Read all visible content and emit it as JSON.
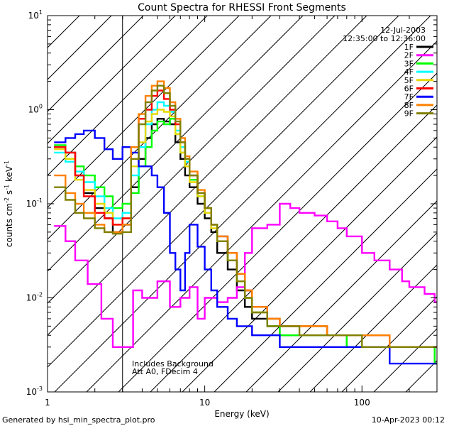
{
  "chart_data": {
    "type": "line",
    "title": "Count Spectra for RHESSI Front Segments",
    "xlabel": "Energy (keV)",
    "ylabel": "counts cm^-2 s^-1 keV^-1",
    "ylabel_parts": [
      "counts cm",
      "-2",
      " s",
      "-1",
      " keV",
      "-1"
    ],
    "xscale": "log",
    "yscale": "log",
    "xlim": [
      1,
      300
    ],
    "ylim": [
      0.001,
      10
    ],
    "x_tick_labels": [
      {
        "value": 1,
        "label": "1"
      },
      {
        "value": 10,
        "label": "10"
      },
      {
        "value": 100,
        "label": "100"
      }
    ],
    "y_tick_labels": [
      {
        "value": 10,
        "base": "10",
        "exp": "1"
      },
      {
        "value": 1,
        "base": "10",
        "exp": "0"
      },
      {
        "value": 0.1,
        "base": "10",
        "exp": "-1"
      },
      {
        "value": 0.01,
        "base": "10",
        "exp": "-2"
      },
      {
        "value": 0.001,
        "base": "10",
        "exp": "-3"
      }
    ],
    "hatched_region_energy": [
      1,
      3
    ],
    "date": "12-Jul-2003",
    "time_range": "12:35:00 to 12:36:00",
    "annotations": [
      "Includes Background",
      "Att A0, FDecim 4"
    ],
    "footer_left": "Generated by hsi_min_spectra_plot.pro",
    "footer_right": "10-Apr-2023 00:12",
    "legend_position": "top-right",
    "series": [
      {
        "name": "1F",
        "color": "#000000",
        "x": [
          1.1,
          1.3,
          1.5,
          1.7,
          2.0,
          2.3,
          2.6,
          3.0,
          3.4,
          3.8,
          4.2,
          4.6,
          5.0,
          5.5,
          6.0,
          6.5,
          7.0,
          7.5,
          8.0,
          9.0,
          10.0,
          11.0,
          12.0,
          14.0,
          16.0,
          18.0,
          20.0,
          25.0,
          30.0,
          40.0,
          60.0,
          80.0,
          100.0,
          150.0,
          200.0,
          250.0,
          290.0
        ],
        "y": [
          0.4,
          0.35,
          0.2,
          0.13,
          0.09,
          0.07,
          0.05,
          0.06,
          0.15,
          0.3,
          0.5,
          0.7,
          0.8,
          0.75,
          0.7,
          0.45,
          0.3,
          0.2,
          0.15,
          0.1,
          0.07,
          0.05,
          0.03,
          0.02,
          0.012,
          0.008,
          0.006,
          0.005,
          0.004,
          0.004,
          0.004,
          0.003,
          0.003,
          0.003,
          0.003,
          0.003,
          0.002
        ]
      },
      {
        "name": "2F",
        "color": "#ff00ff",
        "x": [
          1.1,
          1.3,
          1.5,
          1.8,
          2.2,
          2.6,
          3.0,
          3.5,
          4.0,
          5.0,
          6.0,
          7.0,
          8.0,
          9.0,
          10.0,
          12.0,
          14.0,
          16.0,
          18.0,
          20.0,
          25.0,
          30.0,
          35.0,
          40.0,
          50.0,
          60.0,
          70.0,
          80.0,
          100.0,
          120.0,
          150.0,
          180.0,
          200.0,
          250.0,
          290.0
        ],
        "y": [
          0.058,
          0.04,
          0.025,
          0.014,
          0.006,
          0.003,
          0.003,
          0.012,
          0.01,
          0.015,
          0.008,
          0.01,
          0.013,
          0.006,
          0.01,
          0.009,
          0.01,
          0.013,
          0.03,
          0.055,
          0.06,
          0.1,
          0.09,
          0.08,
          0.075,
          0.065,
          0.055,
          0.045,
          0.03,
          0.025,
          0.02,
          0.015,
          0.013,
          0.011,
          0.009
        ]
      },
      {
        "name": "3F",
        "color": "#00ff00",
        "x": [
          1.1,
          1.3,
          1.5,
          1.7,
          2.0,
          2.3,
          2.6,
          3.0,
          3.4,
          3.8,
          4.2,
          4.6,
          5.0,
          5.5,
          6.0,
          6.5,
          7.0,
          7.5,
          8.0,
          9.0,
          10.0,
          11.0,
          12.0,
          14.0,
          16.0,
          18.0,
          20.0,
          25.0,
          30.0,
          40.0,
          60.0,
          80.0,
          100.0,
          150.0,
          200.0,
          250.0,
          290.0
        ],
        "y": [
          0.42,
          0.3,
          0.25,
          0.2,
          0.15,
          0.12,
          0.09,
          0.1,
          0.13,
          0.25,
          0.4,
          0.6,
          0.75,
          0.7,
          0.8,
          0.55,
          0.35,
          0.25,
          0.18,
          0.12,
          0.09,
          0.06,
          0.04,
          0.025,
          0.015,
          0.01,
          0.007,
          0.005,
          0.004,
          0.004,
          0.004,
          0.003,
          0.003,
          0.003,
          0.003,
          0.003,
          0.002
        ]
      },
      {
        "name": "4F",
        "color": "#00ffff",
        "x": [
          1.1,
          1.3,
          1.5,
          1.7,
          2.0,
          2.3,
          2.6,
          3.0,
          3.4,
          3.8,
          4.2,
          4.6,
          5.0,
          5.5,
          6.0,
          6.5,
          7.0,
          7.5,
          8.0,
          9.0,
          10.0,
          11.0,
          12.0,
          14.0,
          16.0,
          18.0,
          20.0,
          25.0,
          30.0,
          40.0,
          60.0,
          80.0,
          100.0,
          150.0,
          200.0,
          250.0,
          290.0
        ],
        "y": [
          0.35,
          0.28,
          0.22,
          0.17,
          0.12,
          0.09,
          0.07,
          0.08,
          0.2,
          0.4,
          0.7,
          1.0,
          1.2,
          1.1,
          0.95,
          0.6,
          0.4,
          0.28,
          0.2,
          0.13,
          0.09,
          0.06,
          0.045,
          0.03,
          0.018,
          0.012,
          0.008,
          0.006,
          0.005,
          0.005,
          0.004,
          0.004,
          0.004,
          0.003,
          0.003,
          0.003,
          0.003
        ]
      },
      {
        "name": "5F",
        "color": "#e6d800",
        "x": [
          1.1,
          1.3,
          1.5,
          1.7,
          2.0,
          2.3,
          2.6,
          3.0,
          3.4,
          3.8,
          4.2,
          4.6,
          5.0,
          5.5,
          6.0,
          6.5,
          7.0,
          7.5,
          8.0,
          9.0,
          10.0,
          11.0,
          12.0,
          14.0,
          16.0,
          18.0,
          20.0,
          25.0,
          30.0,
          40.0,
          60.0,
          80.0,
          100.0,
          150.0,
          200.0,
          250.0,
          290.0
        ],
        "y": [
          0.38,
          0.3,
          0.18,
          0.14,
          0.1,
          0.08,
          0.06,
          0.07,
          0.25,
          0.45,
          0.75,
          0.9,
          1.0,
          0.95,
          0.85,
          0.55,
          0.35,
          0.25,
          0.17,
          0.12,
          0.08,
          0.055,
          0.04,
          0.025,
          0.015,
          0.01,
          0.007,
          0.006,
          0.005,
          0.005,
          0.004,
          0.004,
          0.004,
          0.003,
          0.003,
          0.003,
          0.003
        ]
      },
      {
        "name": "6F",
        "color": "#ff0000",
        "x": [
          1.1,
          1.3,
          1.5,
          1.7,
          2.0,
          2.3,
          2.6,
          3.0,
          3.4,
          3.8,
          4.2,
          4.6,
          5.0,
          5.5,
          6.0,
          6.5,
          7.0,
          7.5,
          8.0,
          9.0,
          10.0,
          11.0,
          12.0,
          14.0,
          16.0,
          18.0,
          20.0,
          25.0,
          30.0,
          40.0,
          60.0,
          80.0,
          100.0,
          150.0,
          200.0,
          250.0,
          290.0
        ],
        "y": [
          0.4,
          0.35,
          0.2,
          0.12,
          0.08,
          0.07,
          0.06,
          0.07,
          0.4,
          0.8,
          1.0,
          1.4,
          1.6,
          1.3,
          1.0,
          0.7,
          0.45,
          0.3,
          0.2,
          0.13,
          0.09,
          0.06,
          0.045,
          0.03,
          0.018,
          0.012,
          0.008,
          0.006,
          0.005,
          0.005,
          0.004,
          0.004,
          0.004,
          0.003,
          0.003,
          0.003,
          0.003
        ]
      },
      {
        "name": "7F",
        "color": "#0000ff",
        "x": [
          1.1,
          1.3,
          1.5,
          1.7,
          2.0,
          2.3,
          2.6,
          3.0,
          3.4,
          3.8,
          4.2,
          4.6,
          5.0,
          5.5,
          6.0,
          6.5,
          7.0,
          7.5,
          8.0,
          9.0,
          10.0,
          11.0,
          12.0,
          14.0,
          16.0,
          18.0,
          20.0,
          25.0,
          30.0,
          40.0,
          60.0,
          80.0,
          100.0,
          150.0,
          200.0,
          250.0,
          290.0
        ],
        "y": [
          0.45,
          0.5,
          0.55,
          0.6,
          0.5,
          0.38,
          0.3,
          0.4,
          0.35,
          0.25,
          0.25,
          0.2,
          0.15,
          0.08,
          0.03,
          0.02,
          0.012,
          0.03,
          0.06,
          0.035,
          0.02,
          0.012,
          0.008,
          0.006,
          0.005,
          0.005,
          0.004,
          0.004,
          0.003,
          0.003,
          0.003,
          0.003,
          0.003,
          0.002,
          0.002,
          0.002,
          0.002
        ]
      },
      {
        "name": "8F",
        "color": "#ff8000",
        "x": [
          1.1,
          1.3,
          1.5,
          1.7,
          2.0,
          2.3,
          2.6,
          3.0,
          3.4,
          3.8,
          4.2,
          4.6,
          5.0,
          5.5,
          6.0,
          6.5,
          7.0,
          7.5,
          8.0,
          9.0,
          10.0,
          11.0,
          12.0,
          14.0,
          16.0,
          18.0,
          20.0,
          25.0,
          30.0,
          40.0,
          60.0,
          80.0,
          100.0,
          150.0,
          200.0,
          250.0,
          290.0
        ],
        "y": [
          0.2,
          0.13,
          0.1,
          0.08,
          0.06,
          0.05,
          0.05,
          0.06,
          0.4,
          0.9,
          1.4,
          1.8,
          2.0,
          1.7,
          1.2,
          0.8,
          0.5,
          0.32,
          0.22,
          0.14,
          0.09,
          0.06,
          0.045,
          0.03,
          0.018,
          0.012,
          0.008,
          0.006,
          0.005,
          0.005,
          0.004,
          0.004,
          0.004,
          0.003,
          0.003,
          0.003,
          0.003
        ]
      },
      {
        "name": "9F",
        "color": "#808000",
        "x": [
          1.1,
          1.3,
          1.5,
          1.7,
          2.0,
          2.3,
          2.6,
          3.0,
          3.4,
          3.8,
          4.2,
          4.6,
          5.0,
          5.5,
          6.0,
          6.5,
          7.0,
          7.5,
          8.0,
          9.0,
          10.0,
          11.0,
          12.0,
          14.0,
          16.0,
          18.0,
          20.0,
          25.0,
          30.0,
          40.0,
          60.0,
          80.0,
          100.0,
          150.0,
          200.0,
          250.0,
          290.0
        ],
        "y": [
          0.15,
          0.11,
          0.08,
          0.07,
          0.055,
          0.05,
          0.048,
          0.05,
          0.3,
          0.7,
          1.2,
          1.6,
          1.8,
          1.5,
          1.1,
          0.75,
          0.45,
          0.3,
          0.2,
          0.13,
          0.09,
          0.06,
          0.04,
          0.025,
          0.015,
          0.01,
          0.007,
          0.005,
          0.005,
          0.004,
          0.004,
          0.004,
          0.003,
          0.003,
          0.003,
          0.003,
          0.003
        ]
      }
    ]
  }
}
